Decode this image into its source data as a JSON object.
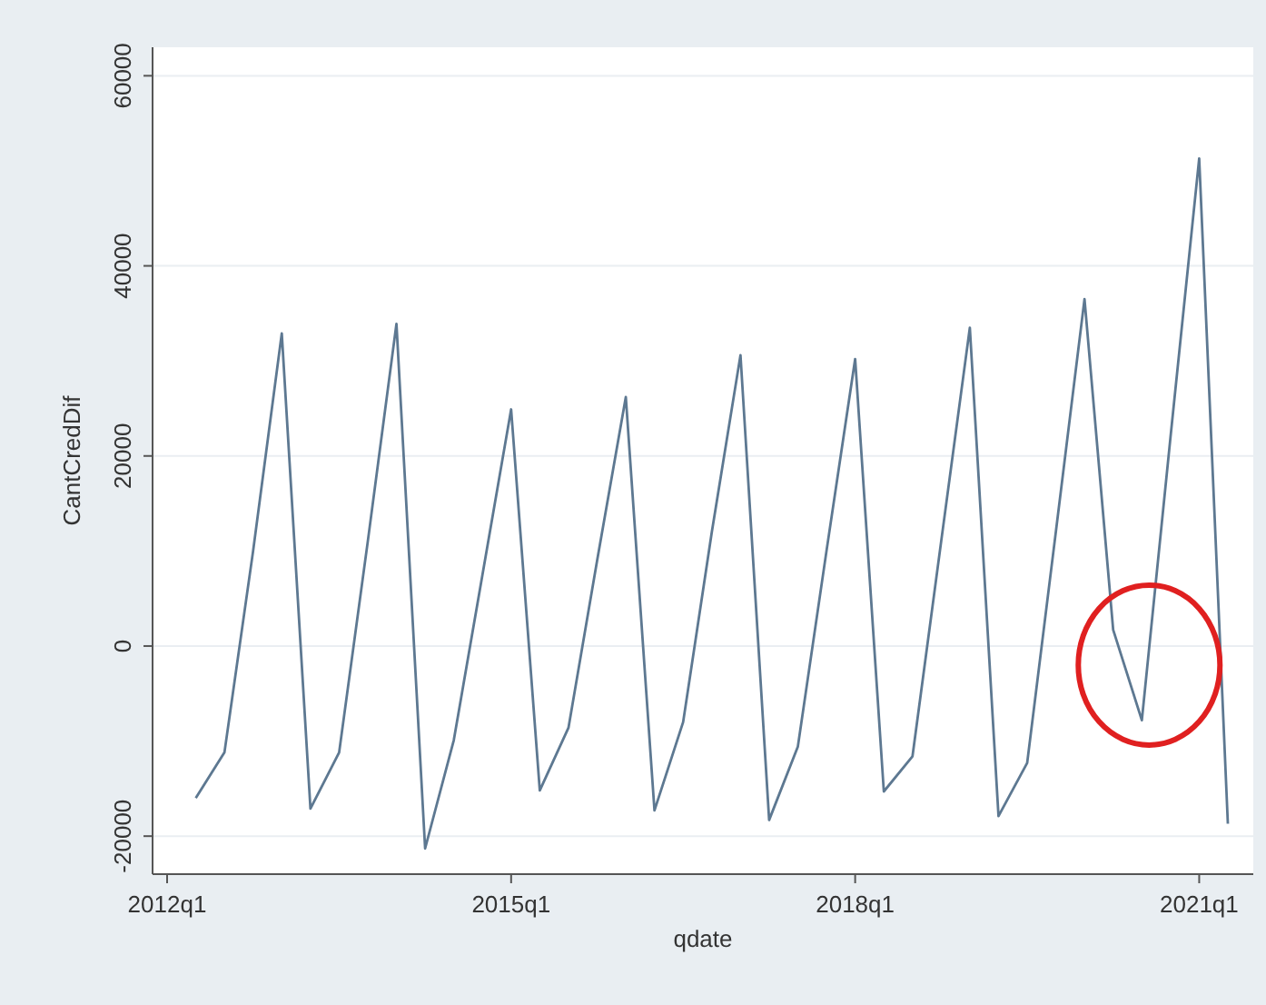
{
  "chart_data": {
    "type": "line",
    "xlabel": "qdate",
    "ylabel": "CantCredDif",
    "categories": [
      "2012q1",
      null,
      null,
      null,
      null,
      null,
      null,
      null,
      null,
      null,
      null,
      null,
      "2015q1",
      null,
      null,
      null,
      null,
      null,
      null,
      null,
      null,
      null,
      null,
      null,
      "2018q1",
      null,
      null,
      null,
      null,
      null,
      null,
      null,
      null,
      null,
      null,
      null,
      "2021q1",
      null
    ],
    "series": [
      {
        "color": "#5d7891",
        "values": [
          null,
          -16000,
          -11200,
          10000,
          32900,
          -17100,
          -11200,
          11000,
          33900,
          -21300,
          -9900,
          7500,
          24900,
          -15200,
          -8600,
          9000,
          26200,
          -17300,
          -8000,
          12000,
          30600,
          -18300,
          -10600,
          10000,
          30200,
          -15300,
          -11600,
          11000,
          33500,
          -17900,
          -12300,
          12000,
          36500,
          1700,
          -7800,
          22000,
          51300,
          -18700
        ]
      }
    ],
    "ylim": [
      -24000,
      63000
    ],
    "yticks": [
      -20000,
      0,
      20000,
      40000,
      60000
    ],
    "grid": "y"
  }
}
